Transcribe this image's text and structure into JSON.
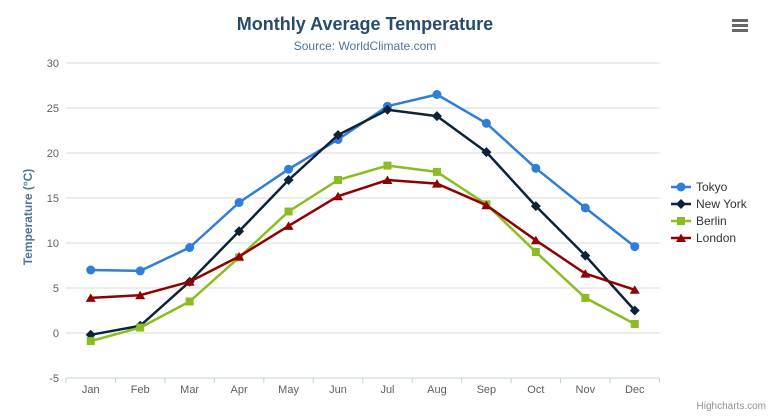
{
  "header": {
    "title": "Monthly Average Temperature",
    "subtitle": "Source: WorldClimate.com"
  },
  "footer": {
    "credits": "Highcharts.com"
  },
  "export_menu": {
    "icon": "hamburger-icon"
  },
  "chart_data": {
    "type": "line",
    "title": "Monthly Average Temperature",
    "subtitle": "Source: WorldClimate.com",
    "xlabel": "",
    "ylabel": "Temperature (°C)",
    "ylim": [
      -5,
      30
    ],
    "y_ticks": [
      -5,
      0,
      5,
      10,
      15,
      20,
      25,
      30
    ],
    "grid": true,
    "legend_position": "right",
    "categories": [
      "Jan",
      "Feb",
      "Mar",
      "Apr",
      "May",
      "Jun",
      "Jul",
      "Aug",
      "Sep",
      "Oct",
      "Nov",
      "Dec"
    ],
    "series": [
      {
        "name": "Tokyo",
        "color": "#2f7ed8",
        "marker": "circle",
        "values": [
          7.0,
          6.9,
          9.5,
          14.5,
          18.2,
          21.5,
          25.2,
          26.5,
          23.3,
          18.3,
          13.9,
          9.6
        ]
      },
      {
        "name": "New York",
        "color": "#0d233a",
        "marker": "diamond",
        "values": [
          -0.2,
          0.8,
          5.7,
          11.3,
          17.0,
          22.0,
          24.8,
          24.1,
          20.1,
          14.1,
          8.6,
          2.5
        ]
      },
      {
        "name": "Berlin",
        "color": "#8bbc21",
        "marker": "square",
        "values": [
          -0.9,
          0.6,
          3.5,
          8.4,
          13.5,
          17.0,
          18.6,
          17.9,
          14.3,
          9.0,
          3.9,
          1.0
        ]
      },
      {
        "name": "London",
        "color": "#910000",
        "marker": "triangle",
        "values": [
          3.9,
          4.2,
          5.7,
          8.5,
          11.9,
          15.2,
          17.0,
          16.6,
          14.2,
          10.3,
          6.6,
          4.8
        ]
      }
    ],
    "colors": {
      "gridline": "#d8d8d8",
      "axis_line": "#c0d0e0",
      "tick_label": "#606060",
      "title": "#274b6d",
      "subtitle": "#4d759e",
      "legend_text": "#333333",
      "credits": "#909090"
    }
  }
}
